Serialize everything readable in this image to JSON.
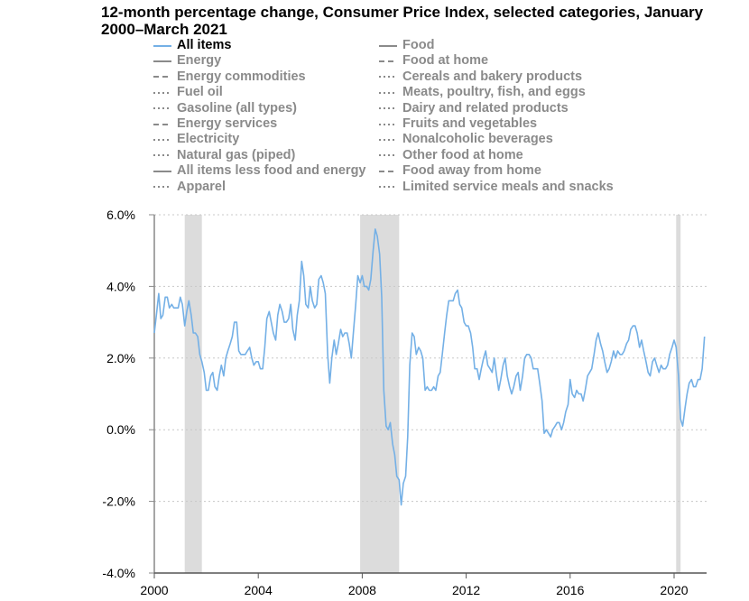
{
  "chart_data": {
    "type": "line",
    "title": "12-month percentage change, Consumer Price Index, selected categories, January 2000–March 2021",
    "xlabel": "",
    "ylabel": "",
    "xlim": [
      2000.0,
      2021.25
    ],
    "ylim": [
      -4.0,
      6.0
    ],
    "yticks": [
      -4,
      -2,
      0,
      2,
      4,
      6
    ],
    "ytick_labels": [
      "-4.0%",
      "-2.0%",
      "0.0%",
      "2.0%",
      "4.0%",
      "6.0%"
    ],
    "xticks": [
      2000,
      2004,
      2008,
      2012,
      2016,
      2020
    ],
    "xtick_labels": [
      "2000",
      "2004",
      "2008",
      "2012",
      "2016",
      "2020"
    ],
    "grid": "horizontal dotted",
    "recession_shading": [
      [
        2001.17,
        2001.83
      ],
      [
        2007.92,
        2009.42
      ],
      [
        2020.08,
        2020.25
      ]
    ],
    "legend": {
      "left": [
        {
          "label": "All items",
          "style": "solid",
          "active": true
        },
        {
          "label": "Energy",
          "style": "solid"
        },
        {
          "label": "Energy commodities",
          "style": "dashed"
        },
        {
          "label": "Fuel oil",
          "style": "dotted"
        },
        {
          "label": "Gasoline (all types)",
          "style": "dotted"
        },
        {
          "label": "Energy services",
          "style": "dashed"
        },
        {
          "label": "Electricity",
          "style": "dotted"
        },
        {
          "label": "Natural gas (piped)",
          "style": "dotted"
        },
        {
          "label": "All items less food and energy",
          "style": "solid"
        },
        {
          "label": "Apparel",
          "style": "dotted"
        }
      ],
      "right": [
        {
          "label": "Food",
          "style": "solid"
        },
        {
          "label": "Food at home",
          "style": "dashed"
        },
        {
          "label": "Cereals and bakery products",
          "style": "dotted"
        },
        {
          "label": "Meats, poultry, fish, and eggs",
          "style": "dotted"
        },
        {
          "label": "Dairy and related products",
          "style": "dotted"
        },
        {
          "label": "Fruits and vegetables",
          "style": "dotted"
        },
        {
          "label": "Nonalcoholic beverages",
          "style": "dotted"
        },
        {
          "label": "Other food at home",
          "style": "dotted"
        },
        {
          "label": "Food away from home",
          "style": "dashed"
        },
        {
          "label": "Limited service meals and snacks",
          "style": "dotted"
        }
      ]
    },
    "series": [
      {
        "name": "All items",
        "color": "#74b0e6",
        "points": [
          [
            2000.0,
            2.7
          ],
          [
            2000.08,
            3.2
          ],
          [
            2000.17,
            3.8
          ],
          [
            2000.25,
            3.1
          ],
          [
            2000.33,
            3.2
          ],
          [
            2000.42,
            3.7
          ],
          [
            2000.5,
            3.7
          ],
          [
            2000.58,
            3.4
          ],
          [
            2000.67,
            3.5
          ],
          [
            2000.75,
            3.4
          ],
          [
            2000.83,
            3.4
          ],
          [
            2000.92,
            3.4
          ],
          [
            2001.0,
            3.7
          ],
          [
            2001.08,
            3.5
          ],
          [
            2001.17,
            2.9
          ],
          [
            2001.25,
            3.3
          ],
          [
            2001.33,
            3.6
          ],
          [
            2001.42,
            3.2
          ],
          [
            2001.5,
            2.7
          ],
          [
            2001.58,
            2.7
          ],
          [
            2001.67,
            2.6
          ],
          [
            2001.75,
            2.1
          ],
          [
            2001.83,
            1.9
          ],
          [
            2001.92,
            1.6
          ],
          [
            2002.0,
            1.1
          ],
          [
            2002.08,
            1.1
          ],
          [
            2002.17,
            1.5
          ],
          [
            2002.25,
            1.6
          ],
          [
            2002.33,
            1.2
          ],
          [
            2002.42,
            1.1
          ],
          [
            2002.5,
            1.5
          ],
          [
            2002.58,
            1.8
          ],
          [
            2002.67,
            1.5
          ],
          [
            2002.75,
            2.0
          ],
          [
            2002.83,
            2.2
          ],
          [
            2002.92,
            2.4
          ],
          [
            2003.0,
            2.6
          ],
          [
            2003.08,
            3.0
          ],
          [
            2003.17,
            3.0
          ],
          [
            2003.25,
            2.2
          ],
          [
            2003.33,
            2.1
          ],
          [
            2003.42,
            2.1
          ],
          [
            2003.5,
            2.1
          ],
          [
            2003.58,
            2.2
          ],
          [
            2003.67,
            2.3
          ],
          [
            2003.75,
            2.0
          ],
          [
            2003.83,
            1.8
          ],
          [
            2003.92,
            1.9
          ],
          [
            2004.0,
            1.9
          ],
          [
            2004.08,
            1.7
          ],
          [
            2004.17,
            1.7
          ],
          [
            2004.25,
            2.3
          ],
          [
            2004.33,
            3.1
          ],
          [
            2004.42,
            3.3
          ],
          [
            2004.5,
            3.0
          ],
          [
            2004.58,
            2.7
          ],
          [
            2004.67,
            2.5
          ],
          [
            2004.75,
            3.2
          ],
          [
            2004.83,
            3.5
          ],
          [
            2004.92,
            3.3
          ],
          [
            2005.0,
            3.0
          ],
          [
            2005.08,
            3.0
          ],
          [
            2005.17,
            3.1
          ],
          [
            2005.25,
            3.5
          ],
          [
            2005.33,
            2.8
          ],
          [
            2005.42,
            2.5
          ],
          [
            2005.5,
            3.2
          ],
          [
            2005.58,
            3.6
          ],
          [
            2005.67,
            4.7
          ],
          [
            2005.75,
            4.3
          ],
          [
            2005.83,
            3.5
          ],
          [
            2005.92,
            3.4
          ],
          [
            2006.0,
            4.0
          ],
          [
            2006.08,
            3.6
          ],
          [
            2006.17,
            3.4
          ],
          [
            2006.25,
            3.5
          ],
          [
            2006.33,
            4.2
          ],
          [
            2006.42,
            4.3
          ],
          [
            2006.5,
            4.1
          ],
          [
            2006.58,
            3.8
          ],
          [
            2006.67,
            2.1
          ],
          [
            2006.75,
            1.3
          ],
          [
            2006.83,
            2.0
          ],
          [
            2006.92,
            2.5
          ],
          [
            2007.0,
            2.1
          ],
          [
            2007.08,
            2.4
          ],
          [
            2007.17,
            2.8
          ],
          [
            2007.25,
            2.6
          ],
          [
            2007.33,
            2.7
          ],
          [
            2007.42,
            2.7
          ],
          [
            2007.5,
            2.4
          ],
          [
            2007.58,
            2.0
          ],
          [
            2007.67,
            2.8
          ],
          [
            2007.75,
            3.5
          ],
          [
            2007.83,
            4.3
          ],
          [
            2007.92,
            4.1
          ],
          [
            2008.0,
            4.3
          ],
          [
            2008.08,
            4.0
          ],
          [
            2008.17,
            4.0
          ],
          [
            2008.25,
            3.9
          ],
          [
            2008.33,
            4.2
          ],
          [
            2008.42,
            5.0
          ],
          [
            2008.5,
            5.6
          ],
          [
            2008.58,
            5.4
          ],
          [
            2008.67,
            4.9
          ],
          [
            2008.75,
            3.7
          ],
          [
            2008.83,
            1.1
          ],
          [
            2008.92,
            0.1
          ],
          [
            2009.0,
            0.0
          ],
          [
            2009.08,
            0.2
          ],
          [
            2009.17,
            -0.4
          ],
          [
            2009.25,
            -0.7
          ],
          [
            2009.33,
            -1.3
          ],
          [
            2009.42,
            -1.4
          ],
          [
            2009.5,
            -2.1
          ],
          [
            2009.58,
            -1.5
          ],
          [
            2009.67,
            -1.3
          ],
          [
            2009.75,
            -0.2
          ],
          [
            2009.83,
            1.8
          ],
          [
            2009.92,
            2.7
          ],
          [
            2010.0,
            2.6
          ],
          [
            2010.08,
            2.1
          ],
          [
            2010.17,
            2.3
          ],
          [
            2010.25,
            2.2
          ],
          [
            2010.33,
            2.0
          ],
          [
            2010.42,
            1.1
          ],
          [
            2010.5,
            1.2
          ],
          [
            2010.58,
            1.1
          ],
          [
            2010.67,
            1.1
          ],
          [
            2010.75,
            1.2
          ],
          [
            2010.83,
            1.1
          ],
          [
            2010.92,
            1.5
          ],
          [
            2011.0,
            1.6
          ],
          [
            2011.08,
            2.1
          ],
          [
            2011.17,
            2.7
          ],
          [
            2011.25,
            3.2
          ],
          [
            2011.33,
            3.6
          ],
          [
            2011.42,
            3.6
          ],
          [
            2011.5,
            3.6
          ],
          [
            2011.58,
            3.8
          ],
          [
            2011.67,
            3.9
          ],
          [
            2011.75,
            3.5
          ],
          [
            2011.83,
            3.4
          ],
          [
            2011.92,
            3.0
          ],
          [
            2012.0,
            2.9
          ],
          [
            2012.08,
            2.9
          ],
          [
            2012.17,
            2.7
          ],
          [
            2012.25,
            2.3
          ],
          [
            2012.33,
            1.7
          ],
          [
            2012.42,
            1.7
          ],
          [
            2012.5,
            1.4
          ],
          [
            2012.58,
            1.7
          ],
          [
            2012.67,
            2.0
          ],
          [
            2012.75,
            2.2
          ],
          [
            2012.83,
            1.8
          ],
          [
            2012.92,
            1.7
          ],
          [
            2013.0,
            1.6
          ],
          [
            2013.08,
            2.0
          ],
          [
            2013.17,
            1.5
          ],
          [
            2013.25,
            1.1
          ],
          [
            2013.33,
            1.4
          ],
          [
            2013.42,
            1.8
          ],
          [
            2013.5,
            2.0
          ],
          [
            2013.58,
            1.5
          ],
          [
            2013.67,
            1.2
          ],
          [
            2013.75,
            1.0
          ],
          [
            2013.83,
            1.2
          ],
          [
            2013.92,
            1.5
          ],
          [
            2014.0,
            1.6
          ],
          [
            2014.08,
            1.1
          ],
          [
            2014.17,
            1.5
          ],
          [
            2014.25,
            2.0
          ],
          [
            2014.33,
            2.1
          ],
          [
            2014.42,
            2.1
          ],
          [
            2014.5,
            2.0
          ],
          [
            2014.58,
            1.7
          ],
          [
            2014.67,
            1.7
          ],
          [
            2014.75,
            1.7
          ],
          [
            2014.83,
            1.3
          ],
          [
            2014.92,
            0.8
          ],
          [
            2015.0,
            -0.1
          ],
          [
            2015.08,
            0.0
          ],
          [
            2015.17,
            -0.1
          ],
          [
            2015.25,
            -0.2
          ],
          [
            2015.33,
            0.0
          ],
          [
            2015.42,
            0.1
          ],
          [
            2015.5,
            0.2
          ],
          [
            2015.58,
            0.2
          ],
          [
            2015.67,
            0.0
          ],
          [
            2015.75,
            0.2
          ],
          [
            2015.83,
            0.5
          ],
          [
            2015.92,
            0.7
          ],
          [
            2016.0,
            1.4
          ],
          [
            2016.08,
            1.0
          ],
          [
            2016.17,
            0.9
          ],
          [
            2016.25,
            1.1
          ],
          [
            2016.33,
            1.0
          ],
          [
            2016.42,
            1.0
          ],
          [
            2016.5,
            0.8
          ],
          [
            2016.58,
            1.1
          ],
          [
            2016.67,
            1.5
          ],
          [
            2016.75,
            1.6
          ],
          [
            2016.83,
            1.7
          ],
          [
            2016.92,
            2.1
          ],
          [
            2017.0,
            2.5
          ],
          [
            2017.08,
            2.7
          ],
          [
            2017.17,
            2.4
          ],
          [
            2017.25,
            2.2
          ],
          [
            2017.33,
            1.9
          ],
          [
            2017.42,
            1.6
          ],
          [
            2017.5,
            1.7
          ],
          [
            2017.58,
            1.9
          ],
          [
            2017.67,
            2.2
          ],
          [
            2017.75,
            2.0
          ],
          [
            2017.83,
            2.2
          ],
          [
            2017.92,
            2.1
          ],
          [
            2018.0,
            2.1
          ],
          [
            2018.08,
            2.2
          ],
          [
            2018.17,
            2.4
          ],
          [
            2018.25,
            2.5
          ],
          [
            2018.33,
            2.8
          ],
          [
            2018.42,
            2.9
          ],
          [
            2018.5,
            2.9
          ],
          [
            2018.58,
            2.7
          ],
          [
            2018.67,
            2.3
          ],
          [
            2018.75,
            2.5
          ],
          [
            2018.83,
            2.2
          ],
          [
            2018.92,
            1.9
          ],
          [
            2019.0,
            1.6
          ],
          [
            2019.08,
            1.5
          ],
          [
            2019.17,
            1.9
          ],
          [
            2019.25,
            2.0
          ],
          [
            2019.33,
            1.8
          ],
          [
            2019.42,
            1.6
          ],
          [
            2019.5,
            1.8
          ],
          [
            2019.58,
            1.7
          ],
          [
            2019.67,
            1.7
          ],
          [
            2019.75,
            1.8
          ],
          [
            2019.83,
            2.1
          ],
          [
            2019.92,
            2.3
          ],
          [
            2020.0,
            2.5
          ],
          [
            2020.08,
            2.3
          ],
          [
            2020.17,
            1.5
          ],
          [
            2020.25,
            0.3
          ],
          [
            2020.33,
            0.1
          ],
          [
            2020.42,
            0.6
          ],
          [
            2020.5,
            1.0
          ],
          [
            2020.58,
            1.3
          ],
          [
            2020.67,
            1.4
          ],
          [
            2020.75,
            1.2
          ],
          [
            2020.83,
            1.2
          ],
          [
            2020.92,
            1.4
          ],
          [
            2021.0,
            1.4
          ],
          [
            2021.08,
            1.7
          ],
          [
            2021.17,
            2.6
          ]
        ]
      }
    ]
  }
}
